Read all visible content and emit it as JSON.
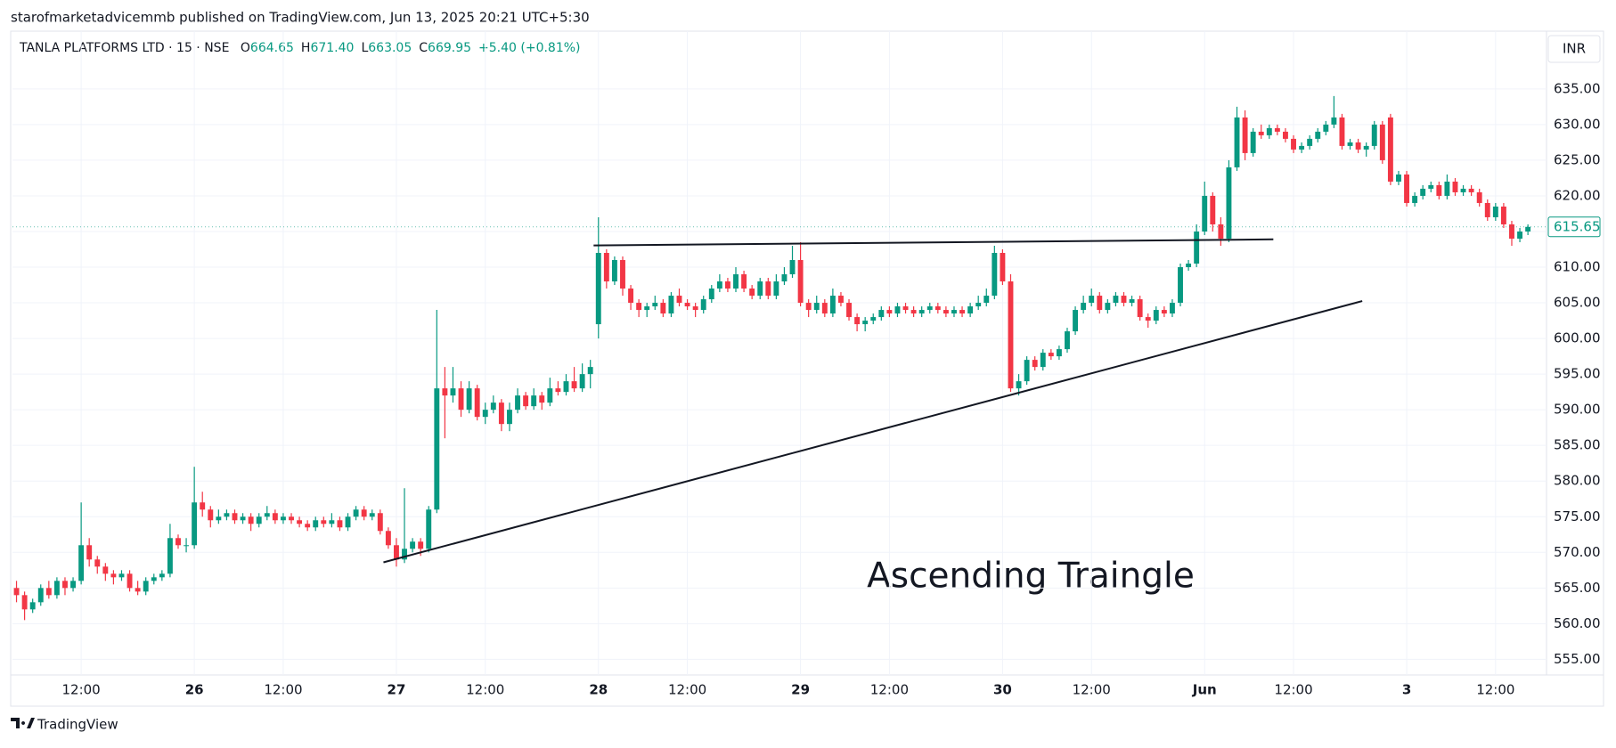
{
  "header": {
    "published": "starofmarketadvicemmb published on TradingView.com, Jun 13, 2025 20:21 UTC+5:30"
  },
  "footer": {
    "brand": "TradingView"
  },
  "chart_data": {
    "type": "candlestick",
    "symbol": "TANLA PLATFORMS LTD · 15 · NSE",
    "ohlc_legend": [
      {
        "label": "O",
        "value": "664.65"
      },
      {
        "label": "H",
        "value": "671.40"
      },
      {
        "label": "L",
        "value": "663.05"
      },
      {
        "label": "C",
        "value": "669.95"
      }
    ],
    "change": "+5.40 (+0.81%)",
    "currency": "INR",
    "annotation": "Ascending Traingle",
    "up_color": "#089981",
    "down_color": "#f23645",
    "grid": true,
    "xlim": [
      -0.5,
      189.3
    ],
    "ylim": [
      552.8,
      643.1
    ],
    "xticks": [
      {
        "value": 8,
        "label": "12:00"
      },
      {
        "value": 22,
        "label": "26"
      },
      {
        "value": 33,
        "label": "12:00"
      },
      {
        "value": 47,
        "label": "27"
      },
      {
        "value": 58,
        "label": "12:00"
      },
      {
        "value": 72,
        "label": "28"
      },
      {
        "value": 83,
        "label": "12:00"
      },
      {
        "value": 97,
        "label": "29"
      },
      {
        "value": 108,
        "label": "12:00"
      },
      {
        "value": 122,
        "label": "30"
      },
      {
        "value": 133,
        "label": "12:00"
      },
      {
        "value": 147,
        "label": "Jun"
      },
      {
        "value": 158,
        "label": "12:00"
      },
      {
        "value": 172,
        "label": "3"
      },
      {
        "value": 183,
        "label": "12:00"
      }
    ],
    "yticks": [
      {
        "value": 555,
        "label": "555.00"
      },
      {
        "value": 560,
        "label": "560.00"
      },
      {
        "value": 565,
        "label": "565.00"
      },
      {
        "value": 570,
        "label": "570.00"
      },
      {
        "value": 575,
        "label": "575.00"
      },
      {
        "value": 580,
        "label": "580.00"
      },
      {
        "value": 585,
        "label": "585.00"
      },
      {
        "value": 590,
        "label": "590.00"
      },
      {
        "value": 595,
        "label": "595.00"
      },
      {
        "value": 600,
        "label": "600.00"
      },
      {
        "value": 605,
        "label": "605.00"
      },
      {
        "value": 610,
        "label": "610.00"
      },
      {
        "value": 615,
        "label": "615.00"
      },
      {
        "value": 620,
        "label": "620.00"
      },
      {
        "value": 625,
        "label": "625.00"
      },
      {
        "value": 630,
        "label": "630.00"
      },
      {
        "value": 635,
        "label": "635.00"
      }
    ],
    "trendlines": [
      {
        "x": [
          71.4,
          155.5
        ],
        "y": [
          613.05,
          613.9
        ]
      },
      {
        "x": [
          45.4,
          166.5
        ],
        "y": [
          568.6,
          605.25
        ]
      }
    ],
    "candles": [
      [
        565,
        566,
        563,
        564
      ],
      [
        564,
        564.5,
        560.5,
        562
      ],
      [
        562,
        563.5,
        561.5,
        563
      ],
      [
        563,
        565.5,
        562.5,
        565
      ],
      [
        565,
        566,
        563.5,
        564
      ],
      [
        564,
        566.5,
        563.5,
        566
      ],
      [
        566,
        566.5,
        564,
        565
      ],
      [
        565,
        566.5,
        564.5,
        566
      ],
      [
        566,
        577,
        565.5,
        571
      ],
      [
        571,
        572,
        568,
        569
      ],
      [
        569,
        569.5,
        567,
        568
      ],
      [
        568,
        568.5,
        566,
        567
      ],
      [
        567,
        567.5,
        565.5,
        566.5
      ],
      [
        566.5,
        567.5,
        566,
        567
      ],
      [
        567,
        567.5,
        564.5,
        565
      ],
      [
        565,
        566,
        564,
        564.5
      ],
      [
        564.5,
        566.5,
        564,
        566
      ],
      [
        566,
        567,
        565.5,
        566.5
      ],
      [
        566.5,
        567.5,
        566,
        567
      ],
      [
        567,
        574,
        566.5,
        572
      ],
      [
        572,
        572.5,
        570.5,
        571
      ],
      [
        571,
        572,
        570,
        571
      ],
      [
        571,
        582,
        570.5,
        577
      ],
      [
        577,
        578.5,
        575,
        576
      ],
      [
        576,
        576.5,
        573.5,
        574.5
      ],
      [
        574.5,
        576,
        574,
        575
      ],
      [
        575,
        576,
        574.5,
        575.5
      ],
      [
        575.5,
        576,
        574,
        574.5
      ],
      [
        574.5,
        575.5,
        574,
        575
      ],
      [
        575,
        575.5,
        573,
        574
      ],
      [
        574,
        575.5,
        573.5,
        575
      ],
      [
        575,
        576.5,
        574.5,
        575.5
      ],
      [
        575.5,
        576,
        574,
        574.5
      ],
      [
        574.5,
        575.5,
        574,
        575
      ],
      [
        575,
        575.5,
        574,
        574.5
      ],
      [
        574.5,
        575,
        573.5,
        574
      ],
      [
        574,
        574.5,
        573,
        573.5
      ],
      [
        573.5,
        575,
        573,
        574.5
      ],
      [
        574.5,
        575,
        573.5,
        574
      ],
      [
        574,
        575.5,
        573.5,
        574.5
      ],
      [
        574.5,
        575,
        573,
        573.5
      ],
      [
        573.5,
        575.5,
        573,
        575
      ],
      [
        575,
        576.5,
        574.5,
        576
      ],
      [
        576,
        576.5,
        574.5,
        575
      ],
      [
        575,
        576,
        574.5,
        575.5
      ],
      [
        575.5,
        576,
        572.5,
        573
      ],
      [
        573,
        573.5,
        570.5,
        571
      ],
      [
        571,
        572,
        568,
        569
      ],
      [
        569,
        579,
        568.5,
        570.5
      ],
      [
        570.5,
        572,
        570,
        571.5
      ],
      [
        571.5,
        572,
        569.5,
        570.5
      ],
      [
        570.5,
        576.5,
        570,
        576
      ],
      [
        576,
        604,
        575.5,
        593
      ],
      [
        593,
        596,
        586,
        592
      ],
      [
        592,
        596,
        591,
        593
      ],
      [
        593,
        594,
        589,
        590
      ],
      [
        590,
        594,
        589.5,
        593
      ],
      [
        593,
        593.5,
        588.5,
        589
      ],
      [
        589,
        591,
        588,
        590
      ],
      [
        590,
        592,
        589.5,
        591
      ],
      [
        591,
        591.5,
        587,
        588
      ],
      [
        588,
        591,
        587,
        590
      ],
      [
        590,
        593,
        589.5,
        592
      ],
      [
        592,
        592.5,
        590,
        590.5
      ],
      [
        590.5,
        593,
        590,
        592
      ],
      [
        592,
        592.5,
        590,
        591
      ],
      [
        591,
        594.5,
        590.5,
        593
      ],
      [
        593,
        594,
        592,
        592.5
      ],
      [
        592.5,
        595,
        592,
        594
      ],
      [
        594,
        596,
        592.5,
        593
      ],
      [
        593,
        596.5,
        592.5,
        595
      ],
      [
        595,
        597,
        593,
        596
      ],
      [
        602,
        617,
        600,
        612
      ],
      [
        612,
        612.5,
        607,
        608
      ],
      [
        608,
        611.5,
        607.5,
        611
      ],
      [
        611,
        611.5,
        606,
        607
      ],
      [
        607,
        607.5,
        604,
        605
      ],
      [
        605,
        605.5,
        603,
        604
      ],
      [
        604,
        605,
        603,
        604.5
      ],
      [
        604.5,
        606,
        604,
        605
      ],
      [
        605,
        605.5,
        603,
        603.5
      ],
      [
        603.5,
        606.5,
        603,
        606
      ],
      [
        606,
        607,
        604.5,
        605
      ],
      [
        605,
        605.5,
        604,
        604.5
      ],
      [
        604.5,
        605,
        603,
        604
      ],
      [
        604,
        606,
        603.5,
        605.5
      ],
      [
        605.5,
        607.5,
        605,
        607
      ],
      [
        607,
        609,
        606.5,
        608
      ],
      [
        608,
        608.5,
        606.5,
        607
      ],
      [
        607,
        610,
        606.5,
        609
      ],
      [
        609,
        609.5,
        606.5,
        607
      ],
      [
        607,
        607.5,
        605.5,
        606
      ],
      [
        606,
        608.5,
        605.5,
        608
      ],
      [
        608,
        608.5,
        605.5,
        606
      ],
      [
        606,
        609,
        605.5,
        608
      ],
      [
        608,
        610,
        607.5,
        609
      ],
      [
        609,
        613,
        608.5,
        611
      ],
      [
        611,
        613.5,
        604.5,
        605
      ],
      [
        605,
        605.5,
        603,
        604
      ],
      [
        604,
        606,
        603.5,
        605
      ],
      [
        605,
        605.5,
        603,
        603.5
      ],
      [
        603.5,
        607,
        603,
        606
      ],
      [
        606,
        606.5,
        604.5,
        605
      ],
      [
        605,
        605.5,
        602.5,
        603
      ],
      [
        603,
        603.5,
        601,
        602
      ],
      [
        602,
        603,
        601,
        602.5
      ],
      [
        602.5,
        603.5,
        602,
        603
      ],
      [
        603,
        604.5,
        602.5,
        604
      ],
      [
        604,
        604.5,
        603,
        603.5
      ],
      [
        603.5,
        605,
        603,
        604.5
      ],
      [
        604.5,
        605,
        603.5,
        604
      ],
      [
        604,
        604.5,
        603,
        603.5
      ],
      [
        603.5,
        604.5,
        603,
        604
      ],
      [
        604,
        605,
        603.5,
        604.5
      ],
      [
        604.5,
        605,
        603.5,
        604
      ],
      [
        604,
        604.5,
        603,
        603.5
      ],
      [
        603.5,
        604.5,
        603,
        604
      ],
      [
        604,
        604.5,
        603,
        603.5
      ],
      [
        603.5,
        605,
        603,
        604.5
      ],
      [
        604.5,
        606,
        604,
        605
      ],
      [
        605,
        607,
        604.5,
        606
      ],
      [
        606,
        613,
        605.5,
        612
      ],
      [
        612,
        612.5,
        607.5,
        608
      ],
      [
        608,
        609,
        592.5,
        593
      ],
      [
        593,
        595,
        592,
        594
      ],
      [
        594,
        597.5,
        593.5,
        597
      ],
      [
        597,
        597.5,
        595.5,
        596
      ],
      [
        596,
        598.5,
        595.5,
        598
      ],
      [
        598,
        598.5,
        597,
        597.5
      ],
      [
        597.5,
        599,
        597,
        598.5
      ],
      [
        598.5,
        601.5,
        598,
        601
      ],
      [
        601,
        604.5,
        600.5,
        604
      ],
      [
        604,
        606,
        603.5,
        605
      ],
      [
        605,
        607,
        604.5,
        606
      ],
      [
        606,
        606.5,
        603.5,
        604
      ],
      [
        604,
        605.5,
        603.5,
        605
      ],
      [
        605,
        606.5,
        604.5,
        606
      ],
      [
        606,
        606.5,
        604.5,
        605
      ],
      [
        605,
        606,
        604.5,
        605.5
      ],
      [
        605.5,
        606,
        602.5,
        603
      ],
      [
        603,
        603.5,
        601.5,
        602.5
      ],
      [
        602.5,
        604.5,
        602,
        604
      ],
      [
        604,
        604.5,
        603,
        603.5
      ],
      [
        603.5,
        605.5,
        603,
        605
      ],
      [
        605,
        610.5,
        604.5,
        610
      ],
      [
        610,
        611,
        609.5,
        610.5
      ],
      [
        610.5,
        616,
        610,
        615
      ],
      [
        615,
        622,
        614.5,
        620
      ],
      [
        620,
        620.5,
        615,
        616
      ],
      [
        616,
        617,
        613,
        614
      ],
      [
        614,
        625,
        613.5,
        624
      ],
      [
        624,
        632.5,
        623.5,
        631
      ],
      [
        631,
        632,
        625,
        626
      ],
      [
        626,
        629.5,
        625.5,
        629
      ],
      [
        629,
        630,
        628,
        628.5
      ],
      [
        628.5,
        630,
        628,
        629.5
      ],
      [
        629.5,
        630,
        628.5,
        629
      ],
      [
        629,
        629.5,
        627.5,
        628
      ],
      [
        628,
        628.5,
        626,
        626.5
      ],
      [
        626.5,
        627.5,
        626,
        627
      ],
      [
        627,
        628.5,
        626.5,
        628
      ],
      [
        628,
        629.5,
        627.5,
        629
      ],
      [
        629,
        630.5,
        628.5,
        630
      ],
      [
        630,
        634,
        629.5,
        631
      ],
      [
        631,
        631.5,
        626.5,
        627
      ],
      [
        627,
        628,
        626.5,
        627.5
      ],
      [
        627.5,
        628,
        626,
        626.5
      ],
      [
        626.5,
        627.5,
        625.5,
        627
      ],
      [
        627,
        630.5,
        626.5,
        630
      ],
      [
        630,
        630.5,
        624.5,
        625
      ],
      [
        631,
        631.5,
        621.5,
        622
      ],
      [
        622,
        623.5,
        621.5,
        623
      ],
      [
        623,
        623.5,
        618.5,
        619
      ],
      [
        619,
        620.5,
        618.5,
        620
      ],
      [
        620,
        621.5,
        619.5,
        621
      ],
      [
        621,
        622,
        620.5,
        621.5
      ],
      [
        621.5,
        622,
        619.5,
        620
      ],
      [
        620,
        623,
        619.5,
        622
      ],
      [
        622,
        622.5,
        620,
        620.5
      ],
      [
        620.5,
        621.5,
        620,
        621
      ],
      [
        621,
        621.5,
        620,
        620.5
      ],
      [
        620.5,
        621,
        618.5,
        619
      ],
      [
        619,
        619.5,
        616.5,
        617
      ],
      [
        617,
        619,
        616.5,
        618.5
      ],
      [
        618.5,
        619,
        615.5,
        616
      ],
      [
        616,
        616.5,
        613,
        614
      ],
      [
        614,
        615.5,
        613.5,
        615
      ],
      [
        615,
        616,
        614.5,
        615.65
      ]
    ]
  }
}
